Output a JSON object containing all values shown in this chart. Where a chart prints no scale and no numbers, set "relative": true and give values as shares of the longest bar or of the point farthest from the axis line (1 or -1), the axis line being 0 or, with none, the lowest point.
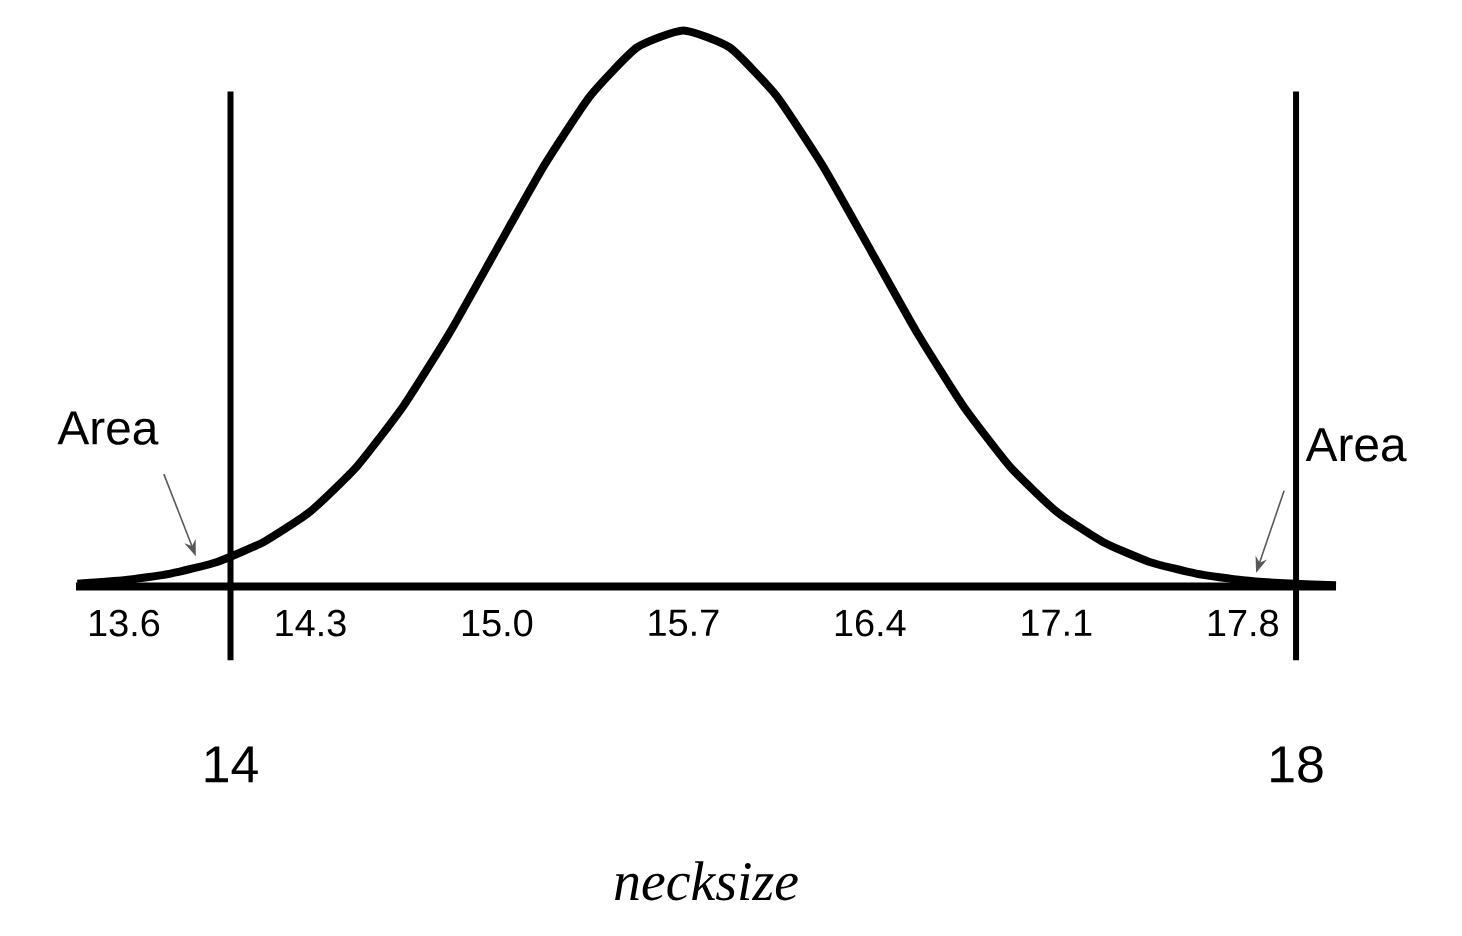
{
  "chart_data": {
    "type": "line",
    "relative": true,
    "color": "#000000",
    "xlabel": "necksize",
    "x": [
      13.425,
      13.6,
      13.775,
      13.95,
      14.125,
      14.3,
      14.475,
      14.65,
      14.825,
      15.0,
      15.175,
      15.35,
      15.525,
      15.7,
      15.875,
      16.05,
      16.225,
      16.4,
      16.575,
      16.75,
      16.925,
      17.1,
      17.275,
      17.45,
      17.625,
      17.8,
      17.975,
      18.15
    ],
    "values": [
      0.005,
      0.011,
      0.023,
      0.044,
      0.08,
      0.135,
      0.216,
      0.325,
      0.458,
      0.607,
      0.755,
      0.882,
      0.969,
      1,
      0.969,
      0.882,
      0.755,
      0.607,
      0.458,
      0.325,
      0.216,
      0.135,
      0.08,
      0.044,
      0.023,
      0.011,
      0.005,
      0.002
    ],
    "xlim": [
      13.42,
      18.15
    ],
    "xticks": [
      13.6,
      14.3,
      {
        "value": 15.0,
        "label": "15.0"
      },
      15.7,
      16.4,
      17.1,
      17.8
    ],
    "ref_lines": [
      {
        "axis": "x",
        "value": 14,
        "label": "14",
        "color": "#000000"
      },
      {
        "axis": "x",
        "value": 18,
        "label": "18",
        "color": "#000000"
      }
    ],
    "annotations": [
      {
        "text": "Area",
        "x": 13.9,
        "y": 0.04
      },
      {
        "text": "Area",
        "x": 17.85,
        "y": 0.01
      }
    ]
  }
}
